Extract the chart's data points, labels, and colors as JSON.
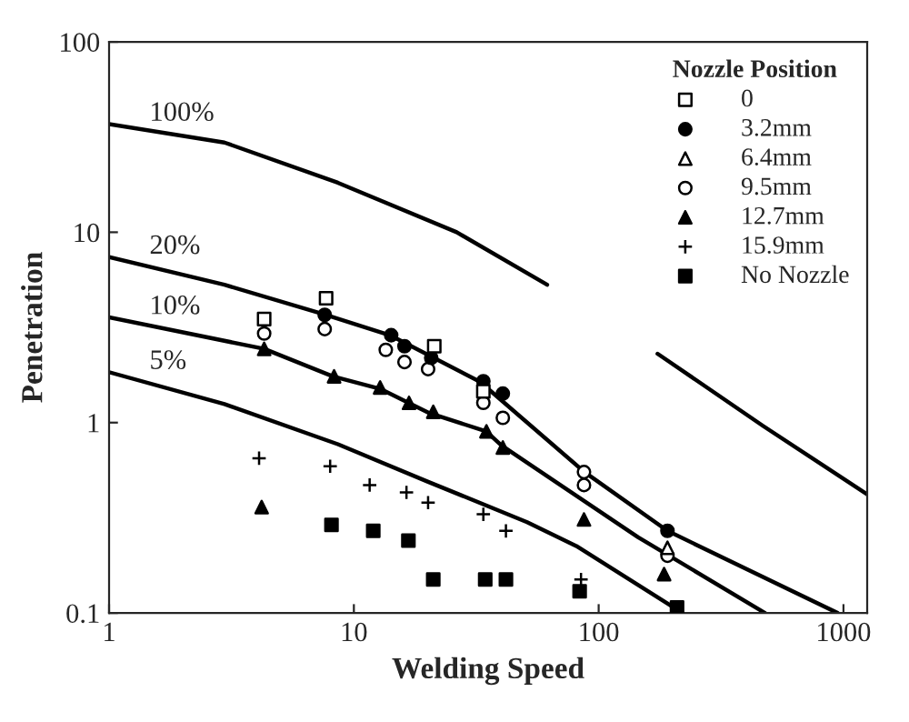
{
  "chart_data": {
    "type": "scatter",
    "xlabel": "Welding Speed",
    "ylabel": "Penetration",
    "legend_title": "Nozzle Position",
    "log": "xy",
    "xlim": [
      1,
      1250
    ],
    "ylim": [
      0.1,
      100
    ],
    "xticks": [
      1,
      10,
      100,
      1000
    ],
    "yticks": [
      0.1,
      1,
      10,
      100
    ],
    "grid": false,
    "legend": "top right",
    "line_style": "solid",
    "series": [
      {
        "type": "line",
        "name": "100%",
        "color": "#000000",
        "x": [
          1,
          2.96,
          8.6,
          26.3,
          61.6,
          null,
          174,
          470,
          1250
        ],
        "values": [
          37,
          29.6,
          18.2,
          10,
          5.3,
          null,
          2.3,
          0.96,
          0.42
        ]
      },
      {
        "type": "line",
        "name": "20%",
        "color": "#000000",
        "x": [
          1,
          2.96,
          7.6,
          14.2,
          32.7,
          87.5,
          191,
          946
        ],
        "values": [
          7.4,
          5.3,
          3.7,
          2.86,
          1.64,
          0.55,
          0.27,
          0.1
        ]
      },
      {
        "type": "line",
        "name": "10%",
        "color": "#000000",
        "x": [
          1,
          4.3,
          8.2,
          12.9,
          20.4,
          34.7,
          40,
          145,
          478
        ],
        "values": [
          3.57,
          2.44,
          1.75,
          1.5,
          1.12,
          0.9,
          0.76,
          0.25,
          0.1
        ]
      },
      {
        "type": "line",
        "name": "5%",
        "color": "#000000",
        "x": [
          1,
          2.96,
          8.6,
          20,
          51,
          81,
          220
        ],
        "values": [
          1.84,
          1.25,
          0.77,
          0.49,
          0.3,
          0.225,
          0.1
        ]
      },
      {
        "name": "0",
        "color": "#000000",
        "marker": "square",
        "x": [
          4.3,
          7.7,
          21.3,
          33.8
        ],
        "values": [
          3.5,
          4.5,
          2.52,
          1.46
        ]
      },
      {
        "name": "3.2mm",
        "color": "#000000",
        "marker": "circle",
        "x": [
          7.6,
          14.2,
          16.1,
          20.7,
          33.8,
          40.6,
          191
        ],
        "values": [
          3.68,
          2.88,
          2.52,
          2.19,
          1.65,
          1.42,
          0.27
        ]
      },
      {
        "name": "6.4mm",
        "color": "#000000",
        "marker": "triangle",
        "x": [
          191
        ],
        "values": [
          0.22
        ]
      },
      {
        "name": "9.5mm",
        "color": "#000000",
        "marker": "circle",
        "x": [
          4.3,
          7.6,
          13.5,
          16.1,
          20.1,
          33.8,
          40.6,
          87.1,
          87.1,
          191
        ],
        "values": [
          2.94,
          3.1,
          2.41,
          2.08,
          1.91,
          1.27,
          1.06,
          0.55,
          0.47,
          0.2
        ]
      },
      {
        "name": "12.7mm",
        "color": "#000000",
        "marker": "triangle",
        "x": [
          4.3,
          8.3,
          12.8,
          16.8,
          21.1,
          34.8,
          40.6,
          87.1,
          185,
          4.2
        ],
        "values": [
          2.44,
          1.75,
          1.53,
          1.27,
          1.14,
          0.9,
          0.74,
          0.31,
          0.16,
          0.36
        ]
      },
      {
        "name": "15.9mm",
        "color": "#000000",
        "marker": "cross",
        "x": [
          4.1,
          8.0,
          11.6,
          16.4,
          20.1,
          33.8,
          41.8,
          84.7
        ],
        "values": [
          0.65,
          0.59,
          0.47,
          0.43,
          0.38,
          0.33,
          0.27,
          0.15
        ]
      },
      {
        "name": "No Nozzle",
        "color": "#000000",
        "marker": "square",
        "x": [
          8.1,
          12.0,
          16.7,
          21.1,
          34.4,
          41.8,
          83.6,
          209
        ],
        "values": [
          0.29,
          0.27,
          0.24,
          0.15,
          0.15,
          0.15,
          0.13,
          0.107
        ]
      }
    ]
  }
}
